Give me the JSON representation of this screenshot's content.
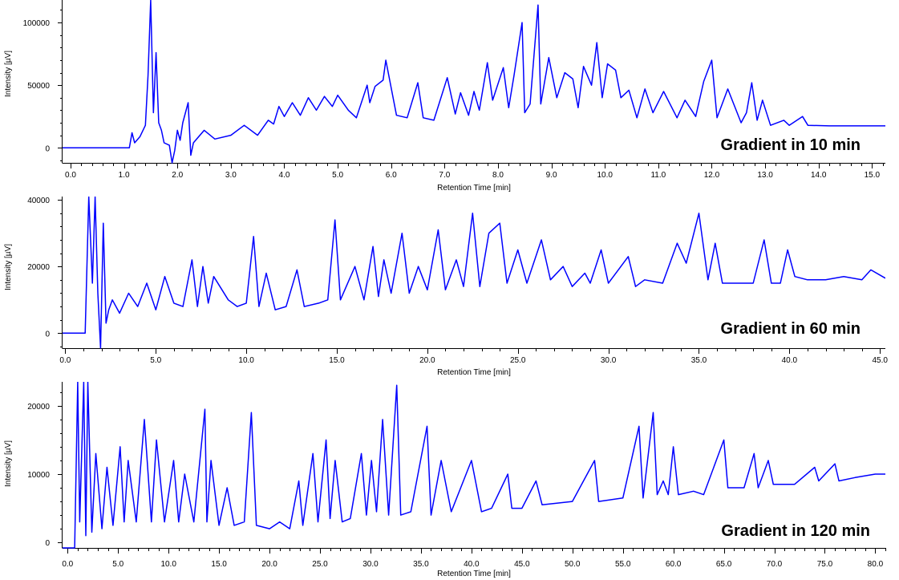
{
  "chart_data": [
    {
      "type": "line",
      "caption": "Gradient in 10 min",
      "xlabel": "Retention Time [min]",
      "ylabel": "Intensity [µV]",
      "xlim": [
        -0.15,
        15.25
      ],
      "ylim": [
        -12000,
        118000
      ],
      "x_ticks": [
        0.0,
        1.0,
        2.0,
        3.0,
        4.0,
        5.0,
        6.0,
        7.0,
        8.0,
        9.0,
        10.0,
        11.0,
        12.0,
        13.0,
        14.0,
        15.0
      ],
      "x_tick_labels": [
        "0.0",
        "1.0",
        "2.0",
        "3.0",
        "4.0",
        "5.0",
        "6.0",
        "7.0",
        "8.0",
        "9.0",
        "10.0",
        "11.0",
        "12.0",
        "13.0",
        "14.0",
        "15.0"
      ],
      "y_ticks": [
        0,
        50000,
        100000
      ],
      "y_tick_labels": [
        "0",
        "50000",
        "100000"
      ],
      "series": [
        {
          "color": "#0000ff",
          "x": [
            -0.15,
            1.1,
            1.15,
            1.2,
            1.3,
            1.4,
            1.45,
            1.5,
            1.55,
            1.6,
            1.65,
            1.7,
            1.75,
            1.85,
            1.9,
            1.95,
            2.0,
            2.05,
            2.1,
            2.2,
            2.25,
            2.3,
            2.5,
            2.7,
            3.0,
            3.25,
            3.5,
            3.7,
            3.8,
            3.9,
            4.0,
            4.15,
            4.3,
            4.45,
            4.6,
            4.75,
            4.9,
            5.0,
            5.2,
            5.35,
            5.55,
            5.6,
            5.7,
            5.85,
            5.9,
            6.1,
            6.3,
            6.5,
            6.6,
            6.8,
            7.05,
            7.2,
            7.3,
            7.45,
            7.55,
            7.65,
            7.8,
            7.9,
            8.1,
            8.2,
            8.3,
            8.45,
            8.5,
            8.6,
            8.75,
            8.8,
            8.95,
            9.1,
            9.25,
            9.4,
            9.5,
            9.6,
            9.75,
            9.85,
            9.95,
            10.05,
            10.2,
            10.3,
            10.45,
            10.6,
            10.75,
            10.9,
            11.1,
            11.35,
            11.5,
            11.7,
            11.85,
            12.0,
            12.1,
            12.3,
            12.55,
            12.65,
            12.75,
            12.85,
            12.95,
            13.1,
            13.35,
            13.45,
            13.7,
            13.8,
            14.2,
            15.25
          ],
          "y": [
            0,
            0,
            12000,
            4000,
            9000,
            18000,
            58000,
            118000,
            28000,
            76000,
            20000,
            14000,
            4000,
            2000,
            -12000,
            -2000,
            14000,
            6000,
            20000,
            36000,
            -6000,
            4000,
            14000,
            7000,
            10000,
            18000,
            10000,
            22000,
            19000,
            33000,
            25000,
            36000,
            26000,
            40000,
            30000,
            41000,
            33000,
            42000,
            30000,
            24000,
            50000,
            36000,
            49000,
            54000,
            70000,
            26000,
            24000,
            52000,
            24000,
            22000,
            56000,
            27000,
            44000,
            26000,
            45000,
            30000,
            68000,
            38000,
            64000,
            32000,
            58000,
            100000,
            28000,
            35000,
            114000,
            35000,
            72000,
            40000,
            60000,
            55000,
            32000,
            65000,
            50000,
            84000,
            40000,
            67000,
            62000,
            40000,
            46000,
            24000,
            47000,
            28000,
            45000,
            24000,
            38000,
            25000,
            53000,
            70000,
            24000,
            47000,
            20000,
            28000,
            52000,
            22000,
            38000,
            18000,
            22000,
            18000,
            25000,
            18000,
            17500,
            17500
          ]
        }
      ]
    },
    {
      "type": "line",
      "caption": "Gradient in 60 min",
      "xlabel": "Retention Time [min]",
      "ylabel": "Intensity [µV]",
      "xlim": [
        -0.15,
        45.3
      ],
      "ylim": [
        -4500,
        41000
      ],
      "x_ticks": [
        0.0,
        5.0,
        10.0,
        15.0,
        20.0,
        25.0,
        30.0,
        35.0,
        40.0,
        45.0
      ],
      "x_tick_labels": [
        "0.0",
        "5.0",
        "10.0",
        "15.0",
        "20.0",
        "25.0",
        "30.0",
        "35.0",
        "40.0",
        "45.0"
      ],
      "y_ticks": [
        0,
        20000,
        40000
      ],
      "y_tick_labels": [
        "0",
        "20000",
        "40000"
      ],
      "series": [
        {
          "color": "#0000ff",
          "x": [
            -0.15,
            1.1,
            1.3,
            1.5,
            1.65,
            1.8,
            1.95,
            2.1,
            2.25,
            2.4,
            2.6,
            3.0,
            3.5,
            4.0,
            4.5,
            5.0,
            5.5,
            6.0,
            6.5,
            7.0,
            7.3,
            7.6,
            7.9,
            8.2,
            9.0,
            9.5,
            10.0,
            10.4,
            10.7,
            11.1,
            11.6,
            12.2,
            12.8,
            13.2,
            14.0,
            14.5,
            14.9,
            15.2,
            16.0,
            16.5,
            17.0,
            17.3,
            17.6,
            18.0,
            18.6,
            19.0,
            19.5,
            20.0,
            20.6,
            21.0,
            21.6,
            22.0,
            22.5,
            22.9,
            23.4,
            24.0,
            24.4,
            25.0,
            25.5,
            26.3,
            26.8,
            27.5,
            28.0,
            28.7,
            29.0,
            29.6,
            30.0,
            31.1,
            31.5,
            32.0,
            33.0,
            33.8,
            34.3,
            35.0,
            35.5,
            35.9,
            36.3,
            37.0,
            38.0,
            38.6,
            39.0,
            39.5,
            39.9,
            40.3,
            41.0,
            42.0,
            43.0,
            44.0,
            44.5,
            45.3
          ],
          "y": [
            0,
            0,
            41000,
            15000,
            41000,
            12000,
            -4500,
            33000,
            3000,
            7000,
            10000,
            6000,
            12000,
            8000,
            15000,
            7000,
            17000,
            9000,
            8000,
            22000,
            8000,
            20000,
            9000,
            17000,
            10000,
            8000,
            9000,
            29000,
            8000,
            18000,
            7000,
            8000,
            19000,
            8000,
            9000,
            10000,
            34000,
            10000,
            20000,
            10000,
            26000,
            11000,
            22000,
            12000,
            30000,
            12000,
            20000,
            13000,
            31000,
            13000,
            22000,
            14000,
            36000,
            14000,
            30000,
            33000,
            15000,
            25000,
            15000,
            28000,
            16000,
            20000,
            14000,
            18000,
            15000,
            25000,
            15000,
            23000,
            14000,
            16000,
            15000,
            27000,
            21000,
            36000,
            16000,
            27000,
            15000,
            15000,
            15000,
            28000,
            15000,
            15000,
            25000,
            17000,
            16000,
            16000,
            17000,
            16000,
            19000,
            16500
          ]
        }
      ]
    },
    {
      "type": "line",
      "caption": "Gradient in 120 min",
      "xlabel": "Retention Time [min]",
      "ylabel": "Intensity [µV]",
      "xlim": [
        -0.5,
        81.0
      ],
      "ylim": [
        -800,
        23500
      ],
      "x_ticks": [
        0.0,
        5.0,
        10.0,
        15.0,
        20.0,
        25.0,
        30.0,
        35.0,
        40.0,
        45.0,
        50.0,
        55.0,
        60.0,
        65.0,
        70.0,
        75.0,
        80.0
      ],
      "x_tick_labels": [
        "0.0",
        "5.0",
        "10.0",
        "15.0",
        "20.0",
        "25.0",
        "30.0",
        "35.0",
        "40.0",
        "45.0",
        "50.0",
        "55.0",
        "60.0",
        "65.0",
        "70.0",
        "75.0",
        "80.0"
      ],
      "y_ticks": [
        0,
        10000,
        20000
      ],
      "y_tick_labels": [
        "0",
        "10000",
        "20000"
      ],
      "series": [
        {
          "color": "#0000ff",
          "x": [
            -0.5,
            0.7,
            1.0,
            1.2,
            1.6,
            1.8,
            2.0,
            2.4,
            2.8,
            3.4,
            3.9,
            4.5,
            5.2,
            5.6,
            6.0,
            6.8,
            7.6,
            8.3,
            8.8,
            9.6,
            10.5,
            11.0,
            11.6,
            12.5,
            13.6,
            13.8,
            14.2,
            15.0,
            15.8,
            16.5,
            17.5,
            18.2,
            18.7,
            20.0,
            21.0,
            22.0,
            22.9,
            23.3,
            24.3,
            24.8,
            25.6,
            26.0,
            26.5,
            27.2,
            28.0,
            29.1,
            29.6,
            30.1,
            30.6,
            31.2,
            31.8,
            32.6,
            33.0,
            34.0,
            35.6,
            36.0,
            37.0,
            38.0,
            40.0,
            41.0,
            42.0,
            43.6,
            44.0,
            45.0,
            46.4,
            47.0,
            50.0,
            52.2,
            52.6,
            55.0,
            56.6,
            57.0,
            58.0,
            58.4,
            59.0,
            59.5,
            60.0,
            60.5,
            62.0,
            63.0,
            65.0,
            65.4,
            67.0,
            68.0,
            68.4,
            69.4,
            69.9,
            72.0,
            74.0,
            74.4,
            76.0,
            76.4,
            78.0,
            80.0,
            81.0
          ],
          "y": [
            -800,
            -800,
            23500,
            3000,
            23500,
            1000,
            23500,
            1500,
            13000,
            2000,
            11000,
            2500,
            14000,
            3000,
            12000,
            3000,
            18000,
            3000,
            15000,
            3000,
            12000,
            3000,
            10000,
            3000,
            19500,
            3000,
            12000,
            2500,
            8000,
            2500,
            3000,
            19000,
            2500,
            2000,
            3000,
            2000,
            9000,
            2500,
            13000,
            3000,
            15000,
            3500,
            12000,
            3000,
            3500,
            13000,
            4000,
            12000,
            4500,
            18000,
            4000,
            23000,
            4000,
            4500,
            17000,
            4000,
            12000,
            4500,
            12000,
            4500,
            5000,
            10000,
            5000,
            5000,
            9000,
            5500,
            6000,
            12000,
            6000,
            6500,
            17000,
            6500,
            19000,
            7000,
            9000,
            7000,
            14000,
            7000,
            7500,
            7000,
            15000,
            8000,
            8000,
            13000,
            8000,
            12000,
            8500,
            8500,
            11000,
            9000,
            11500,
            9000,
            9500,
            10000,
            10000
          ]
        }
      ]
    }
  ]
}
